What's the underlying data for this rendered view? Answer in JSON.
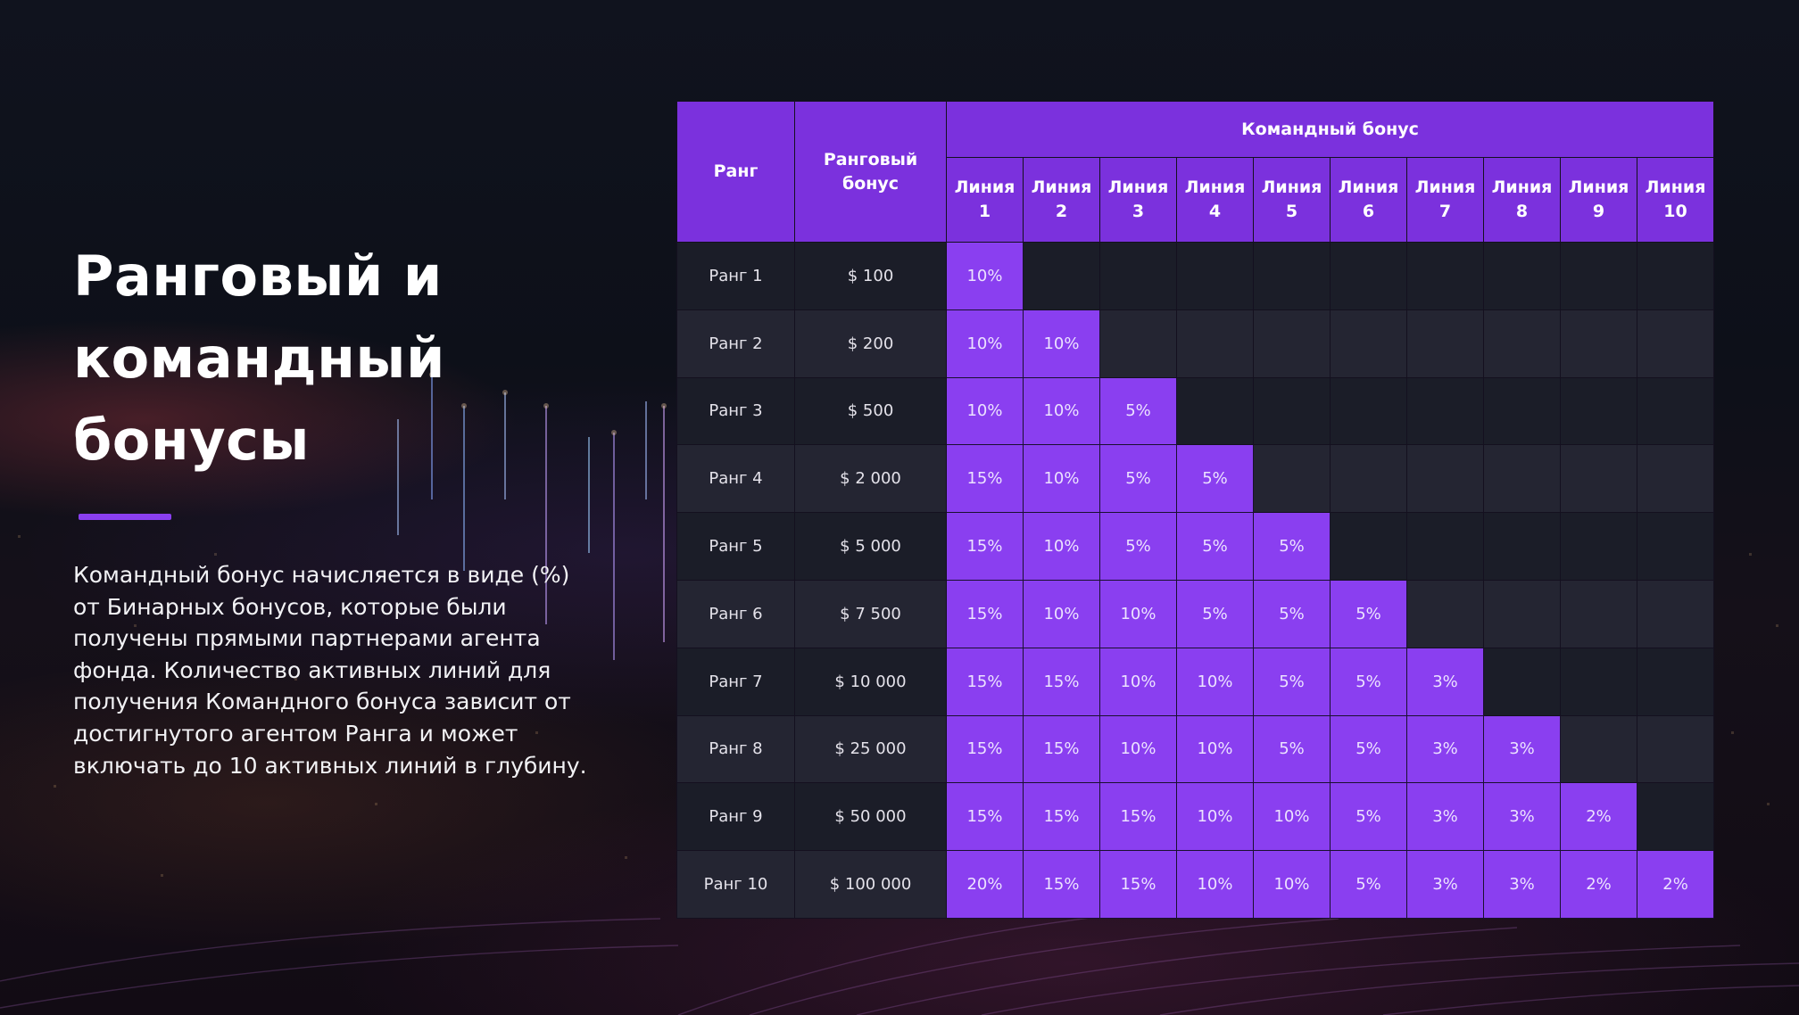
{
  "slide": {
    "title": "Ранговый и\nкомандный\nбонусы",
    "description": "Командный бонус начисляется в виде (%)\nот Бинарных бонусов, которые были\nполучены прямыми партнерами агента\nфонда. Количество активных линий для\nполучения Командного бонуса зависит от\nдостигнутого агентом Ранга и может\nвключать до 10 активных линий в глубину.",
    "accent_color": "#8a3ff0",
    "header_color": "#7b31dd"
  },
  "table": {
    "headers": {
      "rank": "Ранг",
      "rank_bonus": "Ранговый\nбонус",
      "team_bonus": "Командный бонус",
      "lines": [
        "Линия\n1",
        "Линия\n2",
        "Линия\n3",
        "Линия\n4",
        "Линия\n5",
        "Линия\n6",
        "Линия\n7",
        "Линия\n8",
        "Линия\n9",
        "Линия\n10"
      ]
    },
    "rows": [
      {
        "rank": "Ранг 1",
        "bonus": "$ 100",
        "lines": [
          "10%"
        ]
      },
      {
        "rank": "Ранг 2",
        "bonus": "$ 200",
        "lines": [
          "10%",
          "10%"
        ]
      },
      {
        "rank": "Ранг 3",
        "bonus": "$ 500",
        "lines": [
          "10%",
          "10%",
          "5%"
        ]
      },
      {
        "rank": "Ранг 4",
        "bonus": "$ 2 000",
        "lines": [
          "15%",
          "10%",
          "5%",
          "5%"
        ]
      },
      {
        "rank": "Ранг 5",
        "bonus": "$ 5 000",
        "lines": [
          "15%",
          "10%",
          "5%",
          "5%",
          "5%"
        ]
      },
      {
        "rank": "Ранг 6",
        "bonus": "$ 7 500",
        "lines": [
          "15%",
          "10%",
          "10%",
          "5%",
          "5%",
          "5%"
        ]
      },
      {
        "rank": "Ранг 7",
        "bonus": "$ 10 000",
        "lines": [
          "15%",
          "15%",
          "10%",
          "10%",
          "5%",
          "5%",
          "3%"
        ]
      },
      {
        "rank": "Ранг 8",
        "bonus": "$ 25 000",
        "lines": [
          "15%",
          "15%",
          "10%",
          "10%",
          "5%",
          "5%",
          "3%",
          "3%"
        ]
      },
      {
        "rank": "Ранг 9",
        "bonus": "$ 50 000",
        "lines": [
          "15%",
          "15%",
          "15%",
          "10%",
          "10%",
          "5%",
          "3%",
          "3%",
          "2%"
        ]
      },
      {
        "rank": "Ранг 10",
        "bonus": "$ 100 000",
        "lines": [
          "20%",
          "15%",
          "15%",
          "10%",
          "10%",
          "5%",
          "3%",
          "3%",
          "2%",
          "2%"
        ]
      }
    ]
  }
}
